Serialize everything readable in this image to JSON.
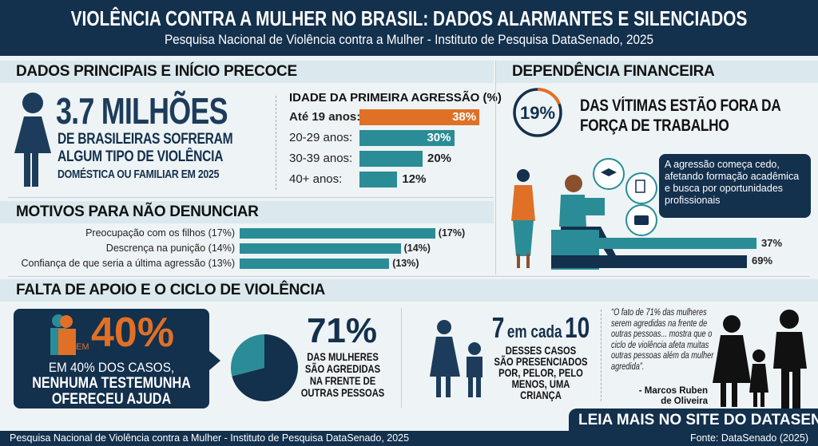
{
  "header": {
    "title": "VIOLÊNCIA CONTRA A MULHER NO BRASIL: DADOS ALARMANTES E SILENCIADOS",
    "subtitle": "Pesquisa Nacional de Violência contra a Mulher - Instituto de Pesquisa DataSenado, 2025"
  },
  "section1": {
    "title": "DADOS PRINCIPAIS E INÍCIO PRECOCE",
    "big_number": "3.7 MILHÕES",
    "lines": [
      "DE BRASILEIRAS SOFRERAM",
      "ALGUM TIPO DE VIOLÊNCIA",
      "DOMÉSTICA OU FAMILIAR EM 2025"
    ]
  },
  "chart_data": [
    {
      "type": "bar",
      "title": "IDADE DA PRIMEIRA AGRESSÃO (%)",
      "categories": [
        "Até 19 anos:",
        "20-29 anos:",
        "30-39 anos:",
        "40+ anos:"
      ],
      "values": [
        38,
        30,
        20,
        12
      ],
      "labels": [
        "38%",
        "30%",
        "20%",
        "12%"
      ],
      "colors": [
        "#e07025",
        "#2a8c97",
        "#2a8c97",
        "#2a8c97"
      ]
    },
    {
      "type": "bar",
      "title": "MOTIVOS PARA NÃO DENUNCIAR",
      "categories": [
        "Preocupação com os filhos (17%)",
        "Descrença na punição (14%)",
        "Confiança de que seria a última agressão (13%)"
      ],
      "values": [
        17,
        14,
        13
      ],
      "labels": [
        "(17%)",
        "(14%)",
        "(13%)"
      ]
    },
    {
      "type": "bar",
      "title": "DEPENDÊNCIA FINANCEIRA",
      "categories": [
        "",
        ""
      ],
      "values": [
        37,
        69
      ],
      "labels": [
        "37%",
        "69%"
      ],
      "colors": [
        "#2a8c97",
        "#13304d"
      ]
    },
    {
      "type": "pie",
      "values": [
        71,
        29
      ],
      "colors": [
        "#13304d",
        "#2a8c97"
      ]
    }
  ],
  "section2": {
    "title": "MOTIVOS PARA NÃO DENUNCIAR"
  },
  "section3": {
    "title": "DEPENDÊNCIA FINANCEIRA",
    "ring_value": "19%",
    "ring_fraction": 0.19,
    "headline": [
      "DAS VÍTIMAS ESTÃO FORA DA",
      "FORÇA DE TRABALHO"
    ],
    "callout": "A agressão começa cedo, afetando formação acadêmica e busca por oportunidades profissionais"
  },
  "section4": {
    "title": "FALTA DE APOIO E O CICLO DE VIOLÊNCIA",
    "em": "EM",
    "big40": "40%",
    "box_line1": "EM 40% DOS CASOS,",
    "box_line2": "NENHUMA TESTEMUNHA",
    "box_line3": "OFERECEU AJUDA",
    "pct71": "71%",
    "text71": [
      "DAS MULHERES",
      "SÃO AGREDIDAS",
      "NA FRENTE DE",
      "OUTRAS PESSOAS"
    ],
    "seven": "7",
    "em_cada": "em cada",
    "ten": "10",
    "text7": [
      "DESSES CASOS",
      "SÃO PRESENCIADOS",
      "POR, PELOR, PELO",
      "MENOS, UMA",
      "CRIANÇA"
    ],
    "quote": "“O fato de 71% das mulheres serem agredidas na frente de outras pessoas... mostra que o ciclo de violência afeta muitas outras pessoas além da mulher agredida”.",
    "author": [
      "- Marcos Ruben",
      "de Oliveira"
    ],
    "cta": "LEIA MAIS NO SITE DO DATASENADO"
  },
  "footer": {
    "left": "Pesquisa Nacional de Violência contra a Mulher - Instituto de Pesquisa DataSenado, 2025",
    "right": "Fonte: DataSenado (2025)"
  }
}
